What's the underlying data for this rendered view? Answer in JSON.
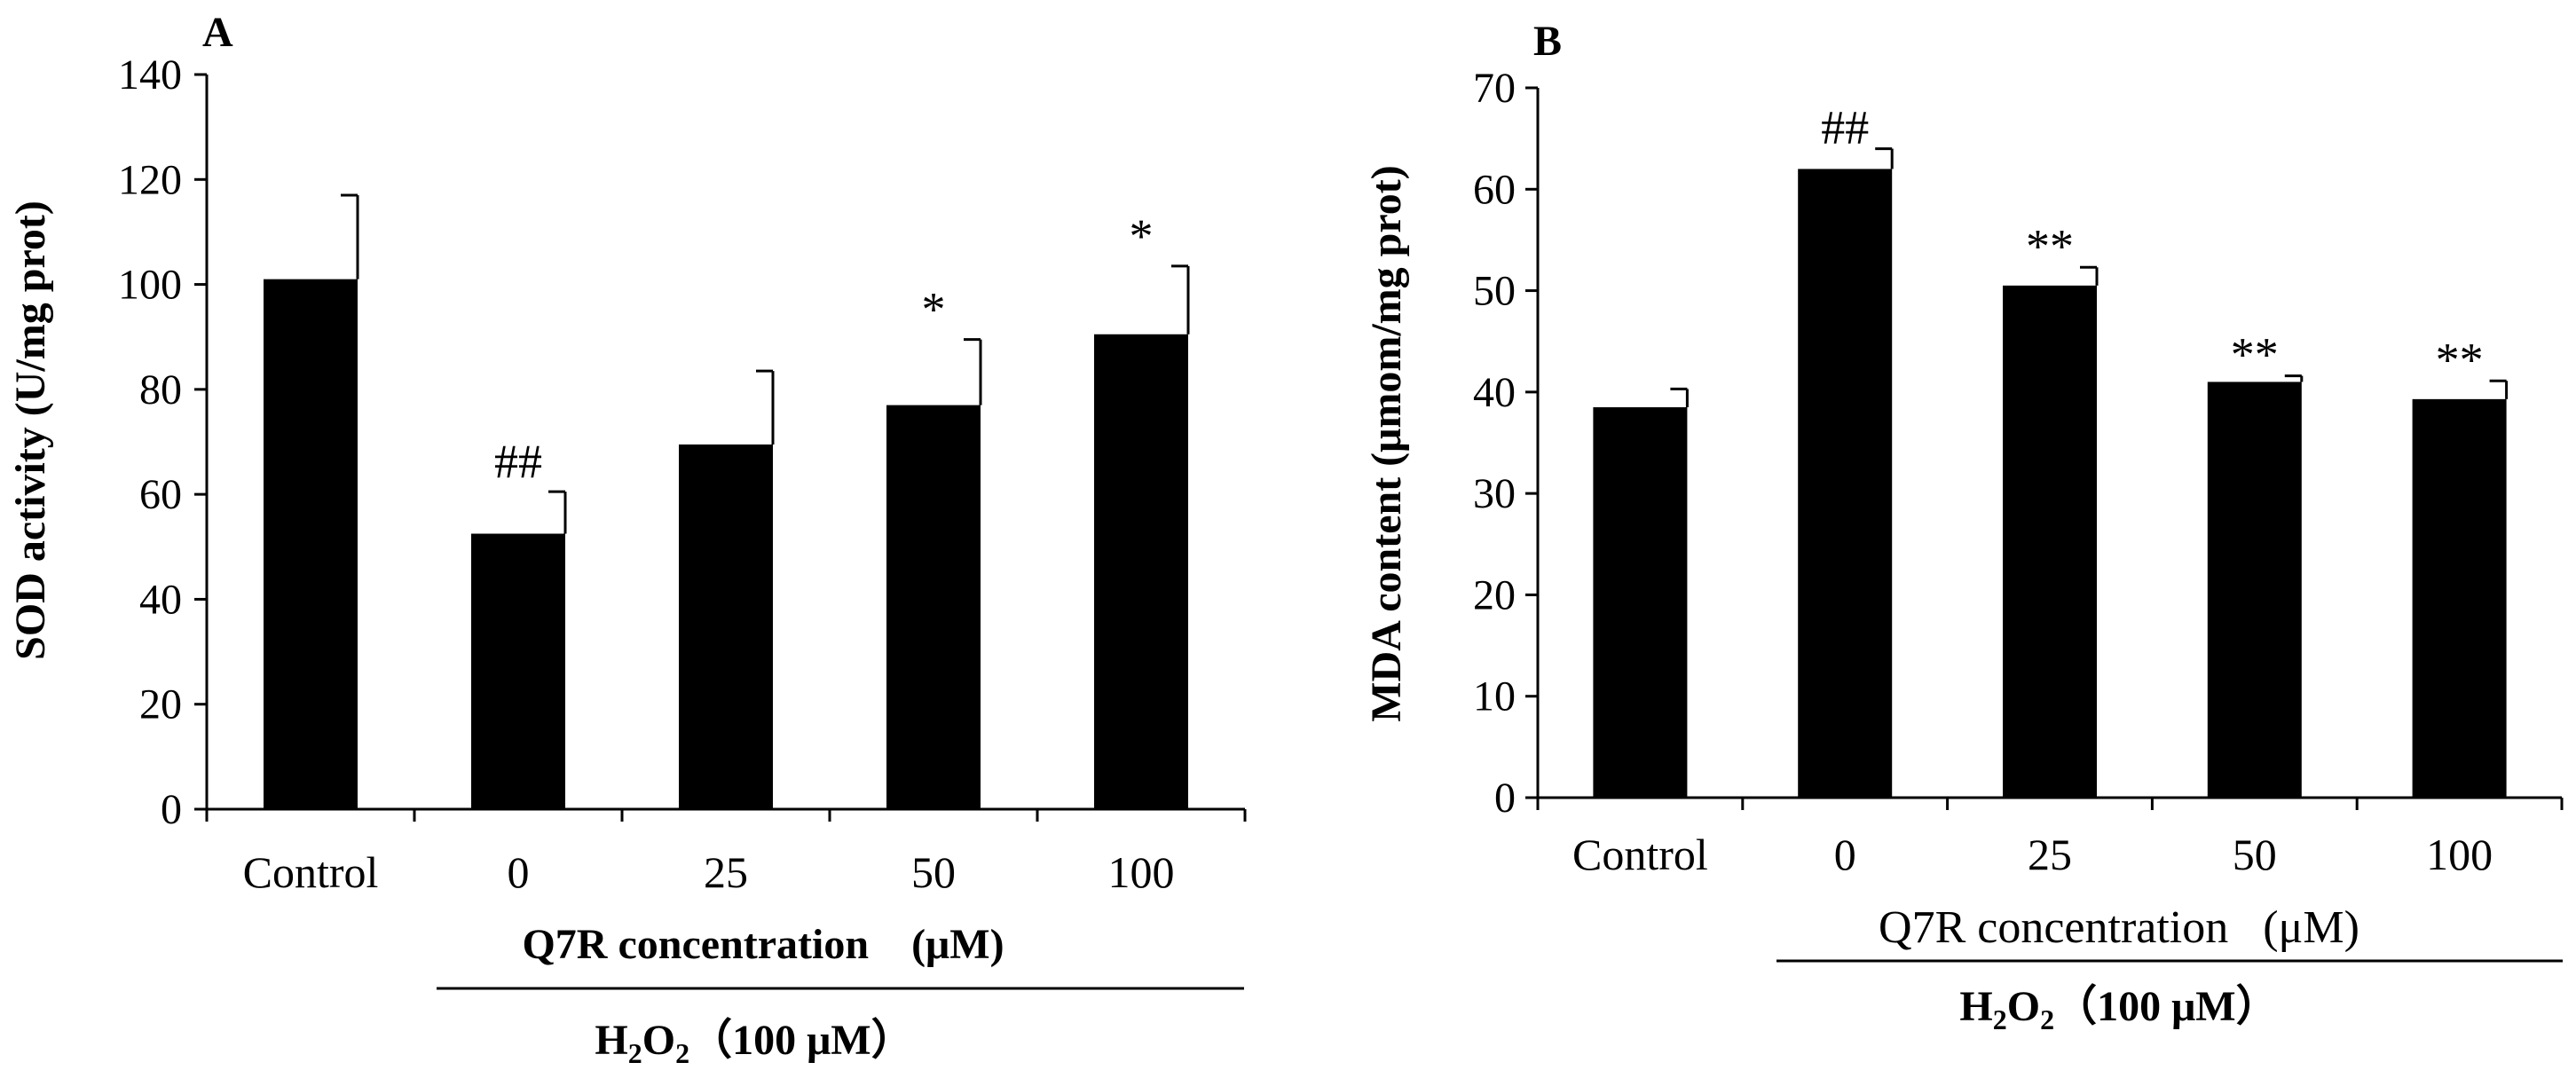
{
  "chart_data": [
    {
      "id": "A",
      "type": "bar",
      "panel_label": "A",
      "ylabel": "SOD activity (U/mg prot)",
      "xlabel": "Q7R concentration    (μM)",
      "group_label": {
        "h": "H",
        "sub1": "2",
        "o": "O",
        "sub2": "2",
        "rest": "（100 μM）"
      },
      "ylim": [
        0,
        140
      ],
      "yticks": [
        0,
        20,
        40,
        60,
        80,
        100,
        120,
        140
      ],
      "categories": [
        "Control",
        "0",
        "25",
        "50",
        "100"
      ],
      "values": [
        101,
        52.5,
        69.5,
        77,
        90.5
      ],
      "errors": [
        16,
        8,
        14,
        12.5,
        13
      ],
      "annotations": [
        "",
        "##",
        "",
        "*",
        "*"
      ]
    },
    {
      "id": "B",
      "type": "bar",
      "panel_label": "B",
      "ylabel": "MDA content (μmom/mg prot)",
      "xlabel": "Q7R concentration   (μM)",
      "group_label": {
        "h": "H",
        "sub1": "2",
        "o": "O",
        "sub2": "2",
        "rest": "（100 μM）"
      },
      "ylim": [
        0,
        70
      ],
      "yticks": [
        0,
        10,
        20,
        30,
        40,
        50,
        60,
        70
      ],
      "categories": [
        "Control",
        "0",
        "25",
        "50",
        "100"
      ],
      "values": [
        38.5,
        62,
        50.5,
        41,
        39.3
      ],
      "errors": [
        1.8,
        2,
        1.8,
        0.6,
        1.8
      ],
      "annotations": [
        "",
        "##",
        "**",
        "**",
        "**"
      ]
    }
  ]
}
